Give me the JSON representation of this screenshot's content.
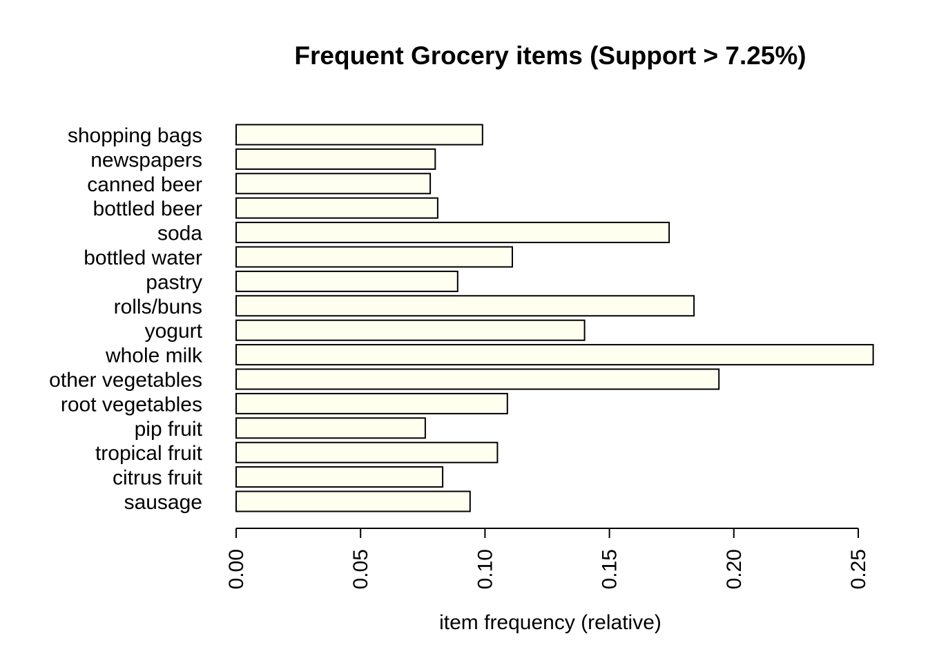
{
  "colors": {
    "bar_fill": "#fffff0",
    "bar_stroke": "#000000",
    "text": "#000000"
  },
  "chart_data": {
    "type": "bar",
    "orientation": "horizontal",
    "title": "Frequent Grocery items (Support > 7.25%)",
    "xlabel": "item frequency (relative)",
    "ylabel": "",
    "xlim": [
      0,
      0.255
    ],
    "ticks": [
      "0.00",
      "0.05",
      "0.10",
      "0.15",
      "0.20",
      "0.25"
    ],
    "tick_values": [
      0,
      0.05,
      0.1,
      0.15,
      0.2,
      0.25
    ],
    "grid": false,
    "categories": [
      "sausage",
      "citrus fruit",
      "tropical fruit",
      "pip fruit",
      "root vegetables",
      "other vegetables",
      "whole milk",
      "yogurt",
      "rolls/buns",
      "pastry",
      "bottled water",
      "soda",
      "bottled beer",
      "canned beer",
      "newspapers",
      "shopping bags"
    ],
    "values": [
      0.094,
      0.083,
      0.105,
      0.076,
      0.109,
      0.194,
      0.256,
      0.14,
      0.184,
      0.089,
      0.111,
      0.174,
      0.081,
      0.078,
      0.08,
      0.099
    ]
  }
}
